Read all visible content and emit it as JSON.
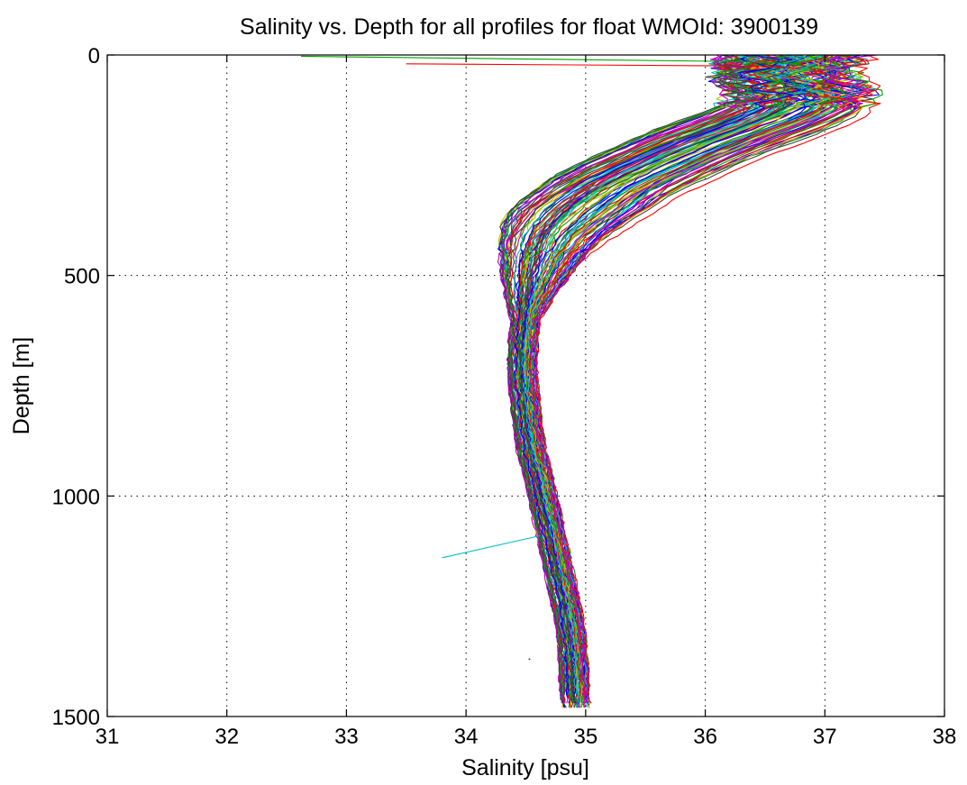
{
  "chart_data": {
    "type": "line",
    "title": "Salinity vs. Depth for all profiles for float WMOId: 3900139",
    "xlabel": "Salinity [psu]",
    "ylabel": "Depth [m]",
    "xlim": [
      31,
      38
    ],
    "ylim": [
      0,
      1500
    ],
    "y_reversed": true,
    "grid": true,
    "xticks": [
      "31",
      "32",
      "33",
      "34",
      "35",
      "36",
      "37",
      "38"
    ],
    "yticks": [
      "0",
      "500",
      "1000",
      "1500"
    ],
    "series_colors": [
      "#0000ff",
      "#00a000",
      "#ff0000",
      "#00bfbf",
      "#bf00bf",
      "#bfbf00",
      "#404040"
    ],
    "mean_profile": {
      "depth": [
        0,
        20,
        40,
        60,
        80,
        100,
        120,
        150,
        180,
        200,
        230,
        260,
        300,
        350,
        400,
        450,
        500,
        550,
        600,
        650,
        700,
        750,
        800,
        850,
        900,
        950,
        1000,
        1050,
        1100,
        1150,
        1200,
        1250,
        1300,
        1350,
        1400,
        1450,
        1490
      ],
      "salinity": [
        36.75,
        36.7,
        36.65,
        36.7,
        36.8,
        36.85,
        36.75,
        36.5,
        36.2,
        36.0,
        35.75,
        35.5,
        35.2,
        34.95,
        34.75,
        34.65,
        34.58,
        34.53,
        34.5,
        34.48,
        34.47,
        34.48,
        34.5,
        34.52,
        34.55,
        34.6,
        34.64,
        34.68,
        34.72,
        34.76,
        34.8,
        34.84,
        34.87,
        34.89,
        34.9,
        34.91,
        34.92
      ]
    },
    "spread_upper": 0.55,
    "spread_deep": 0.12,
    "profile_count": 110,
    "surface_outliers": [
      {
        "salinity": 32.62,
        "depth": 3
      },
      {
        "salinity": 33.5,
        "depth": 20
      }
    ],
    "outlier_spike": {
      "salinity": [
        34.62,
        33.8
      ],
      "depth": [
        1090,
        1140
      ]
    },
    "stray_point": {
      "salinity": 34.53,
      "depth": 1370
    }
  }
}
